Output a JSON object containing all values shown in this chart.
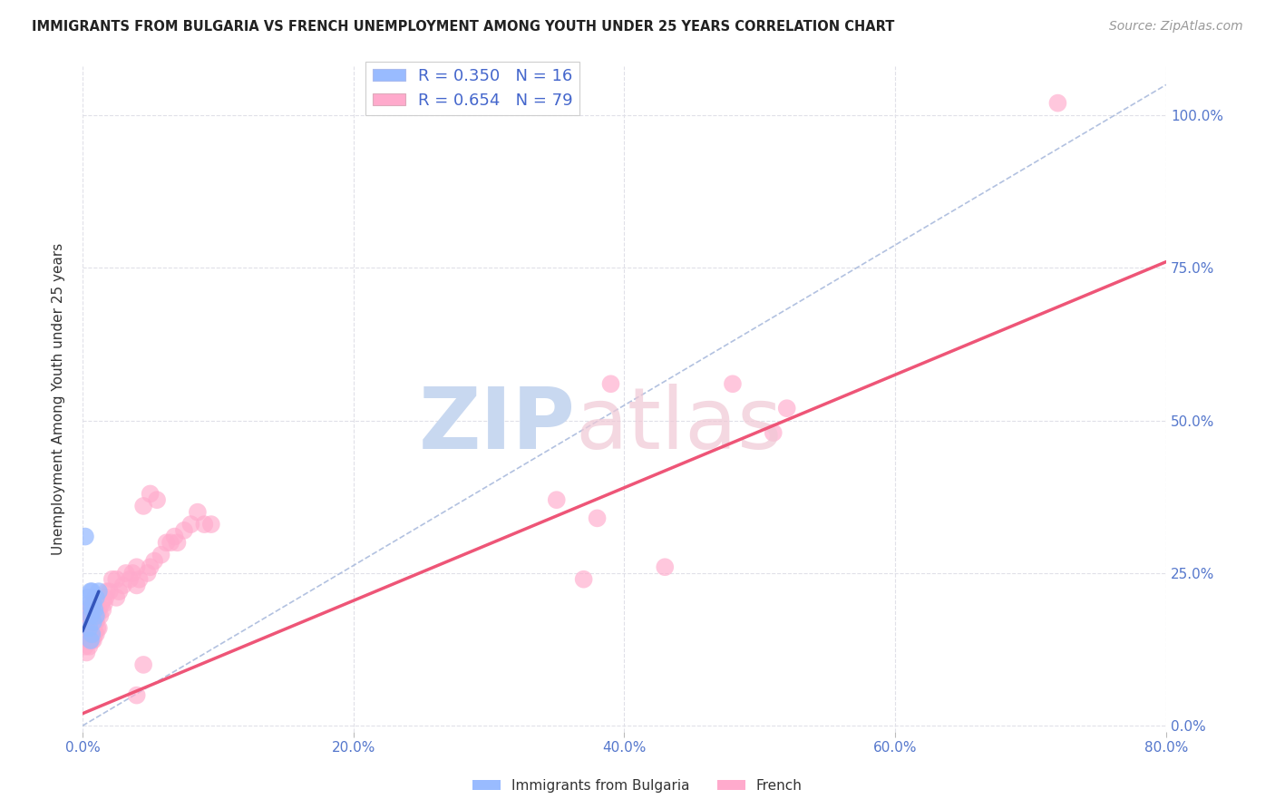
{
  "title": "IMMIGRANTS FROM BULGARIA VS FRENCH UNEMPLOYMENT AMONG YOUTH UNDER 25 YEARS CORRELATION CHART",
  "source": "Source: ZipAtlas.com",
  "ylabel": "Unemployment Among Youth under 25 years",
  "xlim": [
    0.0,
    0.8
  ],
  "ylim": [
    -0.01,
    1.08
  ],
  "yticks": [
    0.0,
    0.25,
    0.5,
    0.75,
    1.0
  ],
  "ytick_labels": [
    "0.0%",
    "25.0%",
    "50.0%",
    "75.0%",
    "100.0%"
  ],
  "xticks": [
    0.0,
    0.2,
    0.4,
    0.6,
    0.8
  ],
  "xtick_labels": [
    "0.0%",
    "20.0%",
    "40.0%",
    "60.0%",
    "80.0%"
  ],
  "bg_color": "#ffffff",
  "grid_color": "#e0e0e8",
  "tick_color": "#5577cc",
  "legend_r1": "R = 0.350",
  "legend_n1": "N = 16",
  "legend_r2": "R = 0.654",
  "legend_n2": "N = 79",
  "legend_label1": "Immigrants from Bulgaria",
  "legend_label2": "French",
  "blue_color": "#3355bb",
  "pink_color": "#ee5577",
  "blue_dot_color": "#99bbff",
  "pink_dot_color": "#ffaacc",
  "blue_dots_x": [
    0.002,
    0.004,
    0.005,
    0.005,
    0.006,
    0.006,
    0.006,
    0.007,
    0.007,
    0.007,
    0.008,
    0.008,
    0.009,
    0.01,
    0.01,
    0.012
  ],
  "blue_dots_y": [
    0.31,
    0.21,
    0.16,
    0.2,
    0.14,
    0.18,
    0.22,
    0.15,
    0.19,
    0.22,
    0.17,
    0.2,
    0.19,
    0.18,
    0.21,
    0.22
  ],
  "pink_dots_x": [
    0.001,
    0.002,
    0.002,
    0.003,
    0.003,
    0.003,
    0.004,
    0.004,
    0.004,
    0.005,
    0.005,
    0.005,
    0.005,
    0.006,
    0.006,
    0.006,
    0.007,
    0.007,
    0.007,
    0.007,
    0.008,
    0.008,
    0.008,
    0.008,
    0.009,
    0.009,
    0.009,
    0.01,
    0.01,
    0.01,
    0.011,
    0.011,
    0.012,
    0.012,
    0.013,
    0.014,
    0.015,
    0.016,
    0.017,
    0.018,
    0.02,
    0.022,
    0.025,
    0.025,
    0.027,
    0.03,
    0.032,
    0.035,
    0.037,
    0.04,
    0.04,
    0.042,
    0.045,
    0.048,
    0.05,
    0.05,
    0.053,
    0.055,
    0.058,
    0.062,
    0.065,
    0.068,
    0.07,
    0.075,
    0.08,
    0.085,
    0.09,
    0.095,
    0.04,
    0.045,
    0.35,
    0.37,
    0.38,
    0.43,
    0.51,
    0.52,
    0.39,
    0.48,
    0.72
  ],
  "pink_dots_y": [
    0.17,
    0.13,
    0.17,
    0.12,
    0.15,
    0.18,
    0.14,
    0.17,
    0.19,
    0.13,
    0.15,
    0.17,
    0.19,
    0.14,
    0.16,
    0.18,
    0.14,
    0.16,
    0.18,
    0.2,
    0.14,
    0.16,
    0.18,
    0.2,
    0.15,
    0.17,
    0.19,
    0.15,
    0.17,
    0.19,
    0.16,
    0.18,
    0.16,
    0.19,
    0.18,
    0.2,
    0.19,
    0.2,
    0.21,
    0.22,
    0.22,
    0.24,
    0.21,
    0.24,
    0.22,
    0.23,
    0.25,
    0.24,
    0.25,
    0.23,
    0.26,
    0.24,
    0.36,
    0.25,
    0.26,
    0.38,
    0.27,
    0.37,
    0.28,
    0.3,
    0.3,
    0.31,
    0.3,
    0.32,
    0.33,
    0.35,
    0.33,
    0.33,
    0.05,
    0.1,
    0.37,
    0.24,
    0.34,
    0.26,
    0.48,
    0.52,
    0.56,
    0.56,
    1.02
  ],
  "blue_line_x": [
    0.0,
    0.012
  ],
  "blue_line_y": [
    0.155,
    0.22
  ],
  "pink_line_x": [
    0.0,
    0.8
  ],
  "pink_line_y": [
    0.02,
    0.76
  ],
  "diag_line_x": [
    0.0,
    0.8
  ],
  "diag_line_y": [
    0.0,
    1.05
  ],
  "diag_line_color": "#aabbdd"
}
